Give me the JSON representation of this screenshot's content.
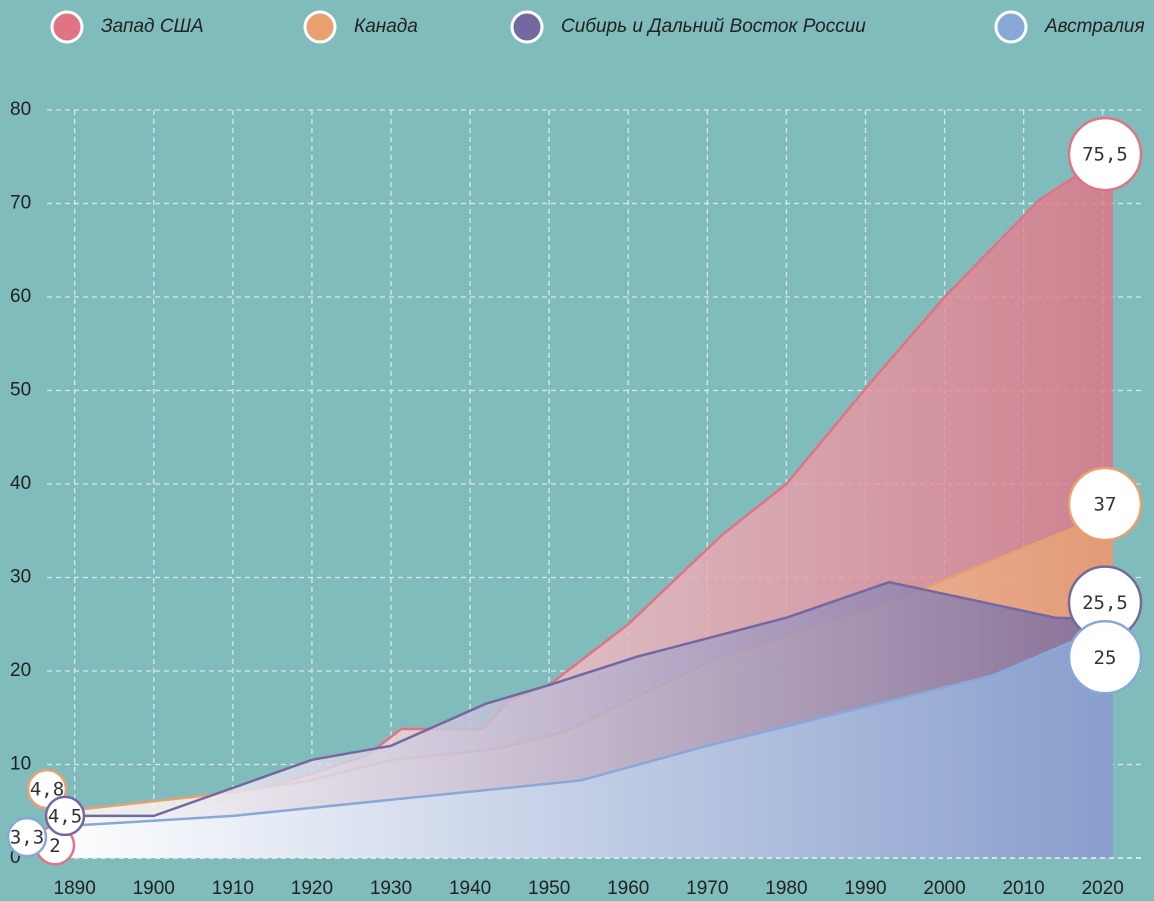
{
  "chart_data": {
    "type": "area",
    "legend": "top",
    "grid": true,
    "xlim": [
      1886.5,
      2021.3
    ],
    "ylim": [
      0,
      80
    ],
    "xticks": [
      1890,
      1900,
      1910,
      1920,
      1930,
      1940,
      1950,
      1960,
      1970,
      1980,
      1990,
      2000,
      2010,
      2020
    ],
    "yticks": [
      0,
      10,
      20,
      30,
      40,
      50,
      60,
      70,
      80
    ],
    "series": [
      {
        "name": "Запад США",
        "color": "#e07484",
        "x": [
          1886.5,
          1900,
          1910,
          1920,
          1927,
          1931.3,
          1941.6,
          1945,
          1950,
          1960,
          1971.8,
          1980,
          1990.4,
          2000,
          2012,
          2021.3
        ],
        "values": [
          2,
          3.5,
          6.5,
          9,
          11,
          13.8,
          13.8,
          16.9,
          18.5,
          25,
          34.5,
          40,
          50.6,
          60,
          70.4,
          75.5
        ],
        "value_labels": [
          "2",
          null,
          null,
          null,
          null,
          null,
          null,
          null,
          null,
          null,
          null,
          null,
          null,
          null,
          null,
          "75,5"
        ]
      },
      {
        "name": "Канада",
        "color": "#e8a070",
        "x": [
          1886.5,
          1910,
          1920,
          1930,
          1943,
          1952,
          1971,
          1995,
          2014,
          2021.3
        ],
        "values": [
          4.8,
          7,
          8.3,
          10.5,
          11.6,
          13.5,
          21.3,
          28,
          34.5,
          37
        ],
        "value_labels": [
          "4,8",
          null,
          null,
          null,
          null,
          null,
          null,
          null,
          null,
          "37"
        ]
      },
      {
        "name": "Сибирь и Дальний Восток России",
        "color": "#7468a0",
        "x": [
          1886.5,
          1900,
          1920,
          1930,
          1942,
          1950,
          1961,
          1980,
          1993,
          2014,
          2021.3
        ],
        "values": [
          4.5,
          4.5,
          10.5,
          12,
          16.5,
          18.5,
          21.5,
          25.7,
          29.5,
          25.7,
          25.5
        ],
        "value_labels": [
          "4,5",
          null,
          null,
          null,
          null,
          null,
          null,
          null,
          null,
          null,
          "25,5"
        ]
      },
      {
        "name": "Австралия",
        "color": "#88a8d8",
        "x": [
          1886.5,
          1910,
          1954,
          1970,
          2006,
          2021.3
        ],
        "values": [
          3.3,
          4.5,
          8.3,
          12,
          19.5,
          25
        ],
        "value_labels": [
          "3,3",
          null,
          null,
          null,
          null,
          "25"
        ]
      }
    ]
  }
}
